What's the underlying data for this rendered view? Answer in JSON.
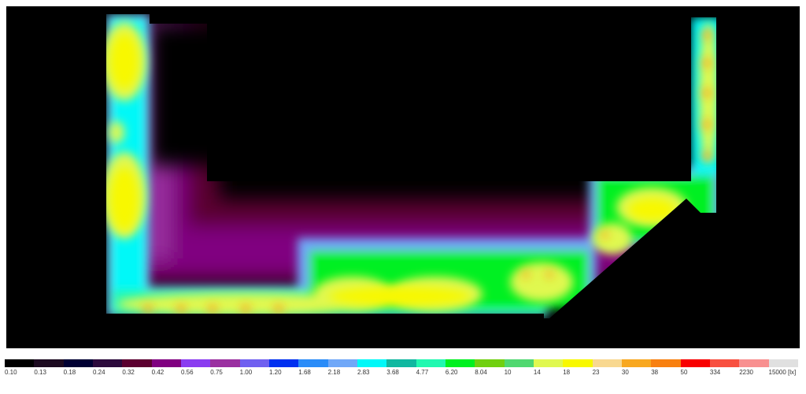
{
  "legend": {
    "unit": "[lx]",
    "items": [
      {
        "label": "0.10",
        "color": "#000000"
      },
      {
        "label": "0.13",
        "color": "#1c0a20"
      },
      {
        "label": "0.18",
        "color": "#000033"
      },
      {
        "label": "0.24",
        "color": "#2c0a3c"
      },
      {
        "label": "0.32",
        "color": "#5c0030"
      },
      {
        "label": "0.42",
        "color": "#800080"
      },
      {
        "label": "0.56",
        "color": "#8a3cf0"
      },
      {
        "label": "0.75",
        "color": "#9a30a0"
      },
      {
        "label": "1.00",
        "color": "#7060f0"
      },
      {
        "label": "1.20",
        "color": "#0030f0"
      },
      {
        "label": "1.68",
        "color": "#2a8cf8"
      },
      {
        "label": "2.18",
        "color": "#70a8f8"
      },
      {
        "label": "2.83",
        "color": "#00f8f8"
      },
      {
        "label": "3.68",
        "color": "#10b8a0"
      },
      {
        "label": "4.77",
        "color": "#20f8b0"
      },
      {
        "label": "6.20",
        "color": "#00f020"
      },
      {
        "label": "8.04",
        "color": "#70d010"
      },
      {
        "label": "10",
        "color": "#50d870"
      },
      {
        "label": "14",
        "color": "#e0f850"
      },
      {
        "label": "18",
        "color": "#f8f800"
      },
      {
        "label": "23",
        "color": "#f8d890"
      },
      {
        "label": "30",
        "color": "#f8a820"
      },
      {
        "label": "38",
        "color": "#f88010"
      },
      {
        "label": "50",
        "color": "#f80000"
      },
      {
        "label": "334",
        "color": "#f85040"
      },
      {
        "label": "2230",
        "color": "#f89090"
      },
      {
        "label": "15000 [lx]",
        "color": "#e0e0e0"
      }
    ]
  }
}
